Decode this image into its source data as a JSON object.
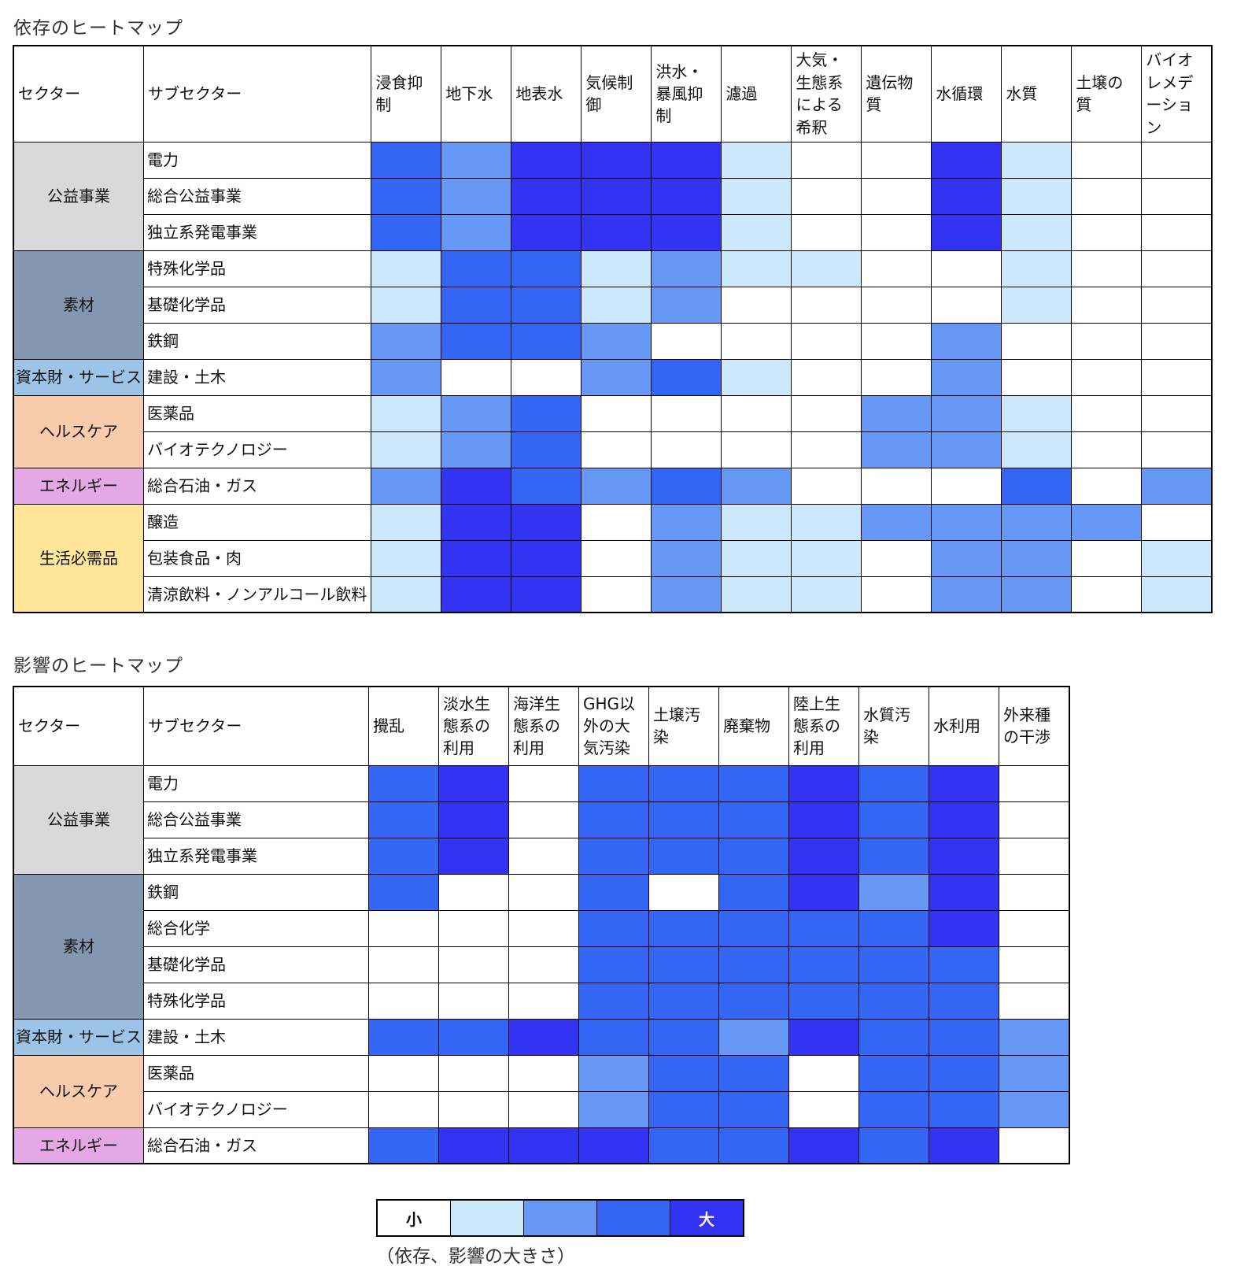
{
  "levels": {
    "0": "#ffffff",
    "1": "#cce9fb",
    "2": "#6699f5",
    "3": "#3366f4",
    "4": "#3333f4"
  },
  "sector_colors": {
    "公益事業": "#d9d9d9",
    "素材": "#8497b0",
    "資本財・サービス": "#9dc3e6",
    "ヘルスケア": "#f8cbad",
    "エネルギー": "#e4a9e4",
    "生活必需品": "#ffe699"
  },
  "legend": {
    "small": "小",
    "large": "大",
    "caption": "（依存、影響の大きさ）"
  },
  "chart_data": [
    {
      "type": "heatmap",
      "title": "依存のヒートマップ",
      "columns": [
        "セクター",
        "サブセクター"
      ],
      "categories": [
        "浸食抑制",
        "地下水",
        "地表水",
        "気候制御",
        "洪水・暴風抑制",
        "濾過",
        "大気・生態系による希釈",
        "遺伝物質",
        "水循環",
        "水質",
        "土壌の質",
        "バイオレメデーション"
      ],
      "rows": [
        {
          "sector": "公益事業",
          "subsector": "電力",
          "values": [
            3,
            2,
            4,
            4,
            4,
            1,
            0,
            0,
            4,
            1,
            0,
            0
          ]
        },
        {
          "sector": "公益事業",
          "subsector": "総合公益事業",
          "values": [
            3,
            2,
            4,
            4,
            4,
            1,
            0,
            0,
            4,
            1,
            0,
            0
          ]
        },
        {
          "sector": "公益事業",
          "subsector": "独立系発電事業",
          "values": [
            3,
            2,
            4,
            4,
            4,
            1,
            0,
            0,
            4,
            1,
            0,
            0
          ]
        },
        {
          "sector": "素材",
          "subsector": "特殊化学品",
          "values": [
            1,
            3,
            3,
            1,
            2,
            1,
            1,
            0,
            0,
            1,
            0,
            0
          ]
        },
        {
          "sector": "素材",
          "subsector": "基礎化学品",
          "values": [
            1,
            3,
            3,
            1,
            2,
            0,
            0,
            0,
            0,
            1,
            0,
            0
          ]
        },
        {
          "sector": "素材",
          "subsector": "鉄鋼",
          "values": [
            2,
            3,
            3,
            2,
            0,
            0,
            0,
            0,
            2,
            0,
            0,
            0
          ]
        },
        {
          "sector": "資本財・サービス",
          "subsector": "建設・土木",
          "values": [
            2,
            0,
            0,
            2,
            3,
            1,
            0,
            0,
            2,
            0,
            0,
            0
          ]
        },
        {
          "sector": "ヘルスケア",
          "subsector": "医薬品",
          "values": [
            1,
            2,
            3,
            0,
            0,
            0,
            0,
            2,
            2,
            1,
            0,
            0
          ]
        },
        {
          "sector": "ヘルスケア",
          "subsector": "バイオテクノロジー",
          "values": [
            1,
            2,
            3,
            0,
            0,
            0,
            0,
            2,
            2,
            1,
            0,
            0
          ]
        },
        {
          "sector": "エネルギー",
          "subsector": "総合石油・ガス",
          "values": [
            2,
            4,
            3,
            2,
            3,
            2,
            0,
            0,
            0,
            3,
            0,
            2
          ]
        },
        {
          "sector": "生活必需品",
          "subsector": "醸造",
          "values": [
            1,
            4,
            4,
            0,
            2,
            1,
            1,
            2,
            2,
            2,
            2,
            0
          ]
        },
        {
          "sector": "生活必需品",
          "subsector": "包装食品・肉",
          "values": [
            1,
            4,
            4,
            0,
            2,
            1,
            1,
            0,
            2,
            2,
            0,
            1
          ]
        },
        {
          "sector": "生活必需品",
          "subsector": "清涼飲料・ノンアルコール飲料",
          "values": [
            1,
            4,
            4,
            0,
            2,
            1,
            1,
            0,
            2,
            2,
            0,
            1
          ]
        }
      ]
    },
    {
      "type": "heatmap",
      "title": "影響のヒートマップ",
      "columns": [
        "セクター",
        "サブセクター"
      ],
      "categories": [
        "攪乱",
        "淡水生態系の利用",
        "海洋生態系の利用",
        "GHG以外の大気汚染",
        "土壌汚染",
        "廃棄物",
        "陸上生態系の利用",
        "水質汚染",
        "水利用",
        "外来種の干渉"
      ],
      "rows": [
        {
          "sector": "公益事業",
          "subsector": "電力",
          "values": [
            3,
            4,
            0,
            3,
            3,
            3,
            4,
            3,
            4,
            0
          ]
        },
        {
          "sector": "公益事業",
          "subsector": "総合公益事業",
          "values": [
            3,
            4,
            0,
            3,
            3,
            3,
            4,
            3,
            4,
            0
          ]
        },
        {
          "sector": "公益事業",
          "subsector": "独立系発電事業",
          "values": [
            3,
            4,
            0,
            3,
            3,
            3,
            4,
            3,
            4,
            0
          ]
        },
        {
          "sector": "素材",
          "subsector": "鉄鋼",
          "values": [
            3,
            0,
            0,
            3,
            0,
            3,
            4,
            2,
            4,
            0
          ]
        },
        {
          "sector": "素材",
          "subsector": "総合化学",
          "values": [
            0,
            0,
            0,
            3,
            3,
            3,
            3,
            3,
            4,
            0
          ]
        },
        {
          "sector": "素材",
          "subsector": "基礎化学品",
          "values": [
            0,
            0,
            0,
            3,
            3,
            3,
            3,
            3,
            3,
            0
          ]
        },
        {
          "sector": "素材",
          "subsector": "特殊化学品",
          "values": [
            0,
            0,
            0,
            3,
            3,
            3,
            3,
            3,
            3,
            0
          ]
        },
        {
          "sector": "資本財・サービス",
          "subsector": "建設・土木",
          "values": [
            3,
            3,
            4,
            3,
            3,
            2,
            4,
            3,
            3,
            2
          ]
        },
        {
          "sector": "ヘルスケア",
          "subsector": "医薬品",
          "values": [
            0,
            0,
            0,
            2,
            3,
            3,
            0,
            3,
            3,
            2
          ]
        },
        {
          "sector": "ヘルスケア",
          "subsector": "バイオテクノロジー",
          "values": [
            0,
            0,
            0,
            2,
            3,
            3,
            0,
            3,
            3,
            2
          ]
        },
        {
          "sector": "エネルギー",
          "subsector": "総合石油・ガス",
          "values": [
            3,
            4,
            4,
            4,
            3,
            3,
            4,
            3,
            4,
            0
          ]
        }
      ]
    }
  ]
}
